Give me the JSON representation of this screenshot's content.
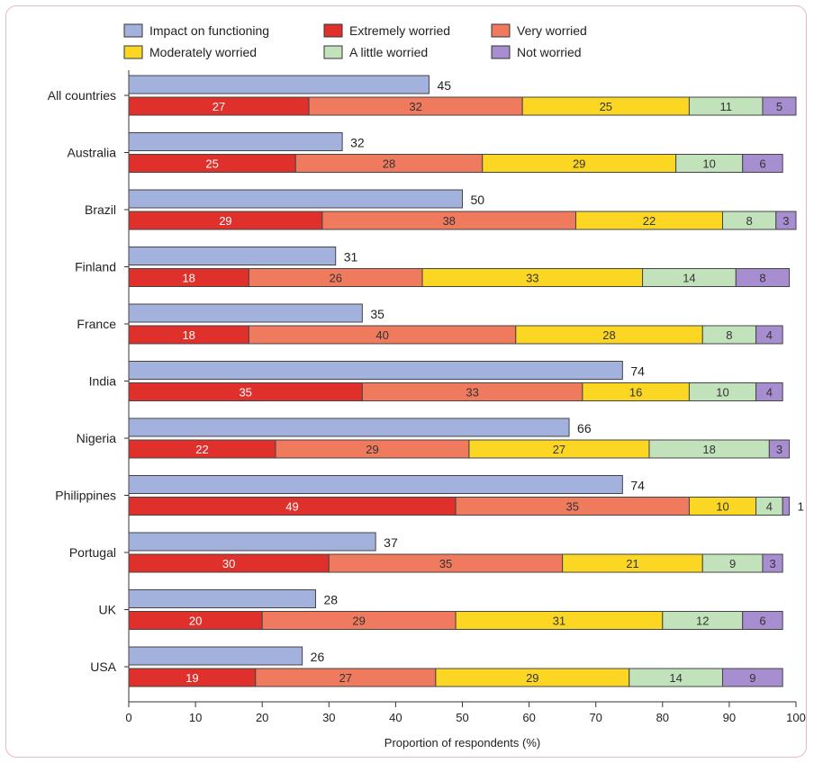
{
  "chart_data": {
    "type": "bar",
    "orientation": "horizontal",
    "stacked_second_bar": true,
    "xlabel": "Proportion of respondents (%)",
    "xlim": [
      0,
      100
    ],
    "xticks": [
      0,
      10,
      20,
      30,
      40,
      50,
      60,
      70,
      80,
      90,
      100
    ],
    "legend_position": "top",
    "categories": [
      "All countries",
      "Australia",
      "Brazil",
      "Finland",
      "France",
      "India",
      "Nigeria",
      "Philippines",
      "Portugal",
      "UK",
      "USA"
    ],
    "impact_series": {
      "name": "Impact on functioning",
      "color": "#a3b1dd",
      "values": [
        45,
        32,
        50,
        31,
        35,
        74,
        66,
        74,
        37,
        28,
        26
      ]
    },
    "worry_series": [
      {
        "name": "Extremely worried",
        "color": "#e0302c",
        "values": [
          27,
          25,
          29,
          18,
          18,
          35,
          22,
          49,
          30,
          20,
          19
        ]
      },
      {
        "name": "Very worried",
        "color": "#ef7a5e",
        "values": [
          32,
          28,
          38,
          26,
          40,
          33,
          29,
          35,
          35,
          29,
          27
        ]
      },
      {
        "name": "Moderately worried",
        "color": "#fbd723",
        "values": [
          25,
          29,
          22,
          33,
          28,
          16,
          27,
          10,
          21,
          31,
          29
        ]
      },
      {
        "name": "A little worried",
        "color": "#c2e2bb",
        "values": [
          11,
          10,
          8,
          14,
          8,
          10,
          18,
          4,
          9,
          12,
          14
        ]
      },
      {
        "name": "Not worried",
        "color": "#a68ed0",
        "values": [
          5,
          6,
          3,
          8,
          4,
          4,
          3,
          1,
          3,
          6,
          9
        ]
      }
    ],
    "legend": [
      {
        "name": "Impact on functioning",
        "color": "#a3b1dd"
      },
      {
        "name": "Extremely worried",
        "color": "#e0302c"
      },
      {
        "name": "Very worried",
        "color": "#ef7a5e"
      },
      {
        "name": "Moderately worried",
        "color": "#fbd723"
      },
      {
        "name": "A little worried",
        "color": "#c2e2bb"
      },
      {
        "name": "Not worried",
        "color": "#a68ed0"
      }
    ],
    "grid": false
  }
}
